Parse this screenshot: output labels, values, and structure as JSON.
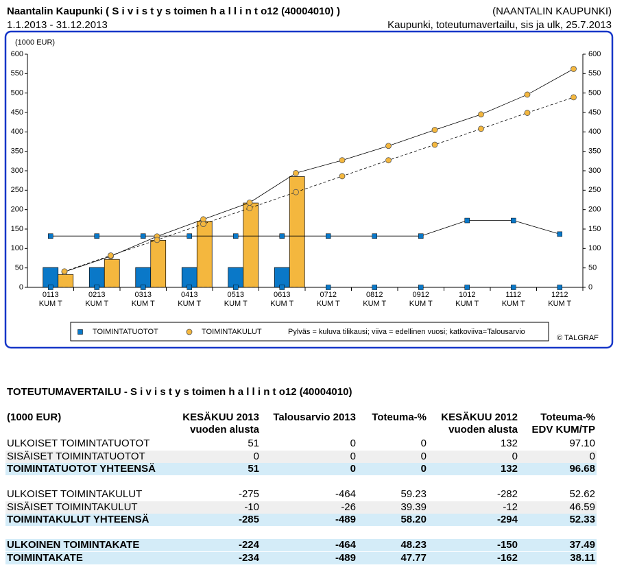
{
  "header": {
    "title": "Naantalin Kaupunki ( S i v i s t y s toimen h a l l i n t o12 (40004010) )",
    "organization": "(NAANTALIN KAUPUNKI)",
    "period": "1.1.2013 - 31.12.2013",
    "report": "Kaupunki, toteutumavertailu, sis ja ulk, 25.7.2013"
  },
  "chart_data": {
    "type": "bar",
    "unit_label": "(1000 EUR)",
    "categories": [
      "0113",
      "0213",
      "0313",
      "0413",
      "0513",
      "0613",
      "0712",
      "0812",
      "0912",
      "1012",
      "1112",
      "1212"
    ],
    "category_suffix": "KUM T",
    "series": [
      {
        "name": "TOIMINTATUOTOT",
        "color": "#0a78c8",
        "values": [
          51,
          51,
          51,
          51,
          51,
          51,
          null,
          null,
          null,
          null,
          null,
          null
        ],
        "previous_year": [
          132,
          132,
          132,
          132,
          132,
          132,
          132,
          132,
          132,
          172,
          172,
          137
        ],
        "budget": [
          0,
          0,
          0,
          0,
          0,
          0,
          0,
          0,
          0,
          0,
          0,
          0
        ]
      },
      {
        "name": "TOIMINTAKULUT",
        "color": "#f4b73e",
        "values": [
          33,
          72,
          121,
          170,
          217,
          285,
          null,
          null,
          null,
          null,
          null,
          null
        ],
        "previous_year": [
          40,
          80,
          131,
          175,
          218,
          294,
          327,
          364,
          405,
          445,
          496,
          562
        ],
        "budget": [
          41,
          82,
          122,
          163,
          204,
          245,
          286,
          327,
          367,
          408,
          449,
          489
        ]
      }
    ],
    "ylim": [
      0,
      600
    ],
    "yticks": [
      0,
      50,
      100,
      150,
      200,
      250,
      300,
      350,
      400,
      450,
      500,
      550,
      600
    ],
    "legend_note": "Pylväs = kuluva tilikausi; viiva = edellinen vuosi; katkoviiva=Talousarvio",
    "credit": "© TALGRAF"
  },
  "table": {
    "title": "TOTEUTUMAVERTAILU - S i v i s t y s toimen h a l l i n t o12 (40004010)",
    "headers": [
      [
        "(1000 EUR)"
      ],
      [
        "KESÄKUU 2013",
        "vuoden alusta"
      ],
      [
        "Talousarvio 2013"
      ],
      [
        "Toteuma-%"
      ],
      [
        "KESÄKUU 2012",
        "vuoden alusta"
      ],
      [
        "Toteuma-%",
        "EDV KUM/TP"
      ]
    ],
    "groups": [
      [
        {
          "style": "plain",
          "cells": [
            "ULKOISET TOIMINTATUOTOT",
            "51",
            "0",
            "0",
            "132",
            "97.10"
          ]
        },
        {
          "style": "alt",
          "cells": [
            "SISÄISET TOIMINTATUOTOT",
            "0",
            "0",
            "0",
            "0",
            "0"
          ]
        },
        {
          "style": "total",
          "cells": [
            "TOIMINTATUOTOT YHTEENSÄ",
            "51",
            "0",
            "0",
            "132",
            "96.68"
          ]
        }
      ],
      [
        {
          "style": "plain",
          "cells": [
            "ULKOISET TOIMINTAKULUT",
            "-275",
            "-464",
            "59.23",
            "-282",
            "52.62"
          ]
        },
        {
          "style": "alt",
          "cells": [
            "SISÄISET TOIMINTAKULUT",
            "-10",
            "-26",
            "39.39",
            "-12",
            "46.59"
          ]
        },
        {
          "style": "total",
          "cells": [
            "TOIMINTAKULUT YHTEENSÄ",
            "-285",
            "-489",
            "58.20",
            "-294",
            "52.33"
          ]
        }
      ],
      [
        {
          "style": "total",
          "cells": [
            "ULKOINEN TOIMINTAKATE",
            "-224",
            "-464",
            "48.23",
            "-150",
            "37.49"
          ]
        },
        {
          "style": "total",
          "cells": [
            "TOIMINTAKATE",
            "-234",
            "-489",
            "47.77",
            "-162",
            "38.11"
          ]
        }
      ]
    ]
  }
}
